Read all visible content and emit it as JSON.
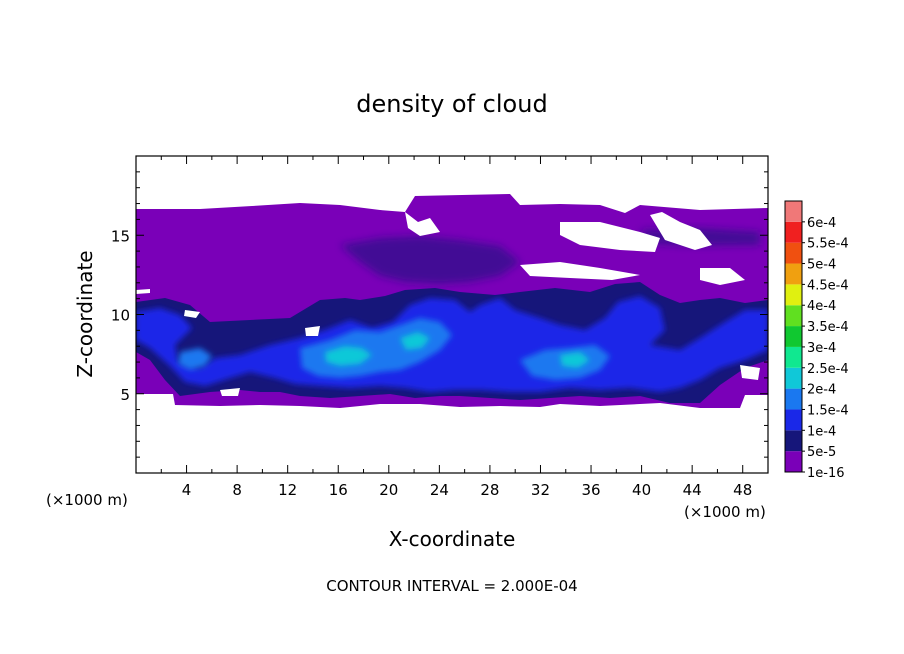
{
  "chart_data": {
    "type": "heatmap",
    "title": "density of cloud",
    "xlabel": "X-coordinate",
    "ylabel": "Z-coordinate",
    "x_unit_left": "(×1000 m)",
    "x_unit_right": "(×1000 m)",
    "xlim": [
      0,
      50
    ],
    "ylim": [
      0,
      20
    ],
    "x_ticks": [
      4,
      8,
      12,
      16,
      20,
      24,
      28,
      32,
      36,
      40,
      44,
      48
    ],
    "y_ticks": [
      5,
      10,
      15
    ],
    "footer": "CONTOUR INTERVAL = 2.000E-04",
    "colorbar": {
      "labels": [
        "1e-16",
        "5e-5",
        "1e-4",
        "1.5e-4",
        "2e-4",
        "2.5e-4",
        "3e-4",
        "3.5e-4",
        "4e-4",
        "4.5e-4",
        "5e-4",
        "5.5e-4",
        "6e-4"
      ],
      "colors": [
        "#7a00b8",
        "#16167a",
        "#1a28e8",
        "#1a78f0",
        "#10c8d8",
        "#10e890",
        "#10c830",
        "#60e020",
        "#e0f010",
        "#f0a010",
        "#f05010",
        "#f02020",
        "#f07878"
      ]
    },
    "colors": {
      "level0": "#7a00b8",
      "level1": "#16167a",
      "level2": "#1a28e8",
      "level3": "#1a78f0",
      "level4": "#10c8d8"
    }
  }
}
